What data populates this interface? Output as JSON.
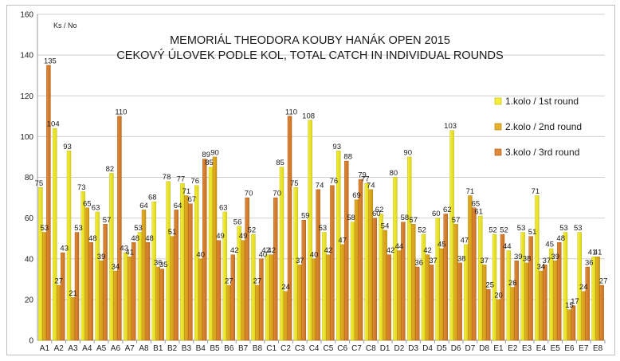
{
  "chart_data": {
    "type": "bar",
    "title": "MEMORIÁL THEODORA KOUBY HANÁK OPEN 2015",
    "subtitle": "CEKOVÝ ÚLOVEK PODLE KOL, TOTAL CATCH IN INDIVIDUAL ROUNDS",
    "ylabel": "Ks / No",
    "xlabel": "",
    "ylim": [
      0,
      160
    ],
    "yticks": [
      0,
      20,
      40,
      60,
      80,
      100,
      120,
      140,
      160
    ],
    "grid": true,
    "legend_position": "right",
    "categories": [
      "A1",
      "A2",
      "A3",
      "A4",
      "A5",
      "A6",
      "A7",
      "A8",
      "B1",
      "B2",
      "B3",
      "B4",
      "B5",
      "B6",
      "B7",
      "B8",
      "C1",
      "C2",
      "C3",
      "C4",
      "C5",
      "C6",
      "C7",
      "C8",
      "D1",
      "D2",
      "D3",
      "D4",
      "D5",
      "D6",
      "D7",
      "D8",
      "E1",
      "E2",
      "E3",
      "E4",
      "E5",
      "E6",
      "E7",
      "E8"
    ],
    "series": [
      {
        "name": "1.kolo / 1st round",
        "color": "#f5ef3a",
        "values": [
          75,
          104,
          93,
          73,
          63,
          82,
          43,
          53,
          68,
          78,
          77,
          76,
          85,
          63,
          56,
          52,
          42,
          85,
          75,
          108,
          53,
          93,
          58,
          77,
          62,
          80,
          90,
          52,
          60,
          103,
          47,
          61,
          52,
          44,
          53,
          71,
          45,
          53,
          53,
          41
        ]
      },
      {
        "name": "2.kolo / 2nd round",
        "color": "#e6b12c",
        "values": [
          53,
          27,
          21,
          65,
          39,
          34,
          41,
          64,
          36,
          51,
          71,
          40,
          90,
          27,
          49,
          27,
          42,
          24,
          37,
          40,
          42,
          47,
          69,
          74,
          54,
          44,
          57,
          42,
          45,
          57,
          71,
          37,
          20,
          26,
          38,
          34,
          39,
          15,
          24,
          41
        ]
      },
      {
        "name": "3.kolo / 3rd round",
        "color": "#e08a3c",
        "values": [
          135,
          43,
          53,
          48,
          57,
          110,
          48,
          48,
          35,
          64,
          67,
          89,
          49,
          42,
          70,
          40,
          70,
          110,
          59,
          74,
          76,
          88,
          79,
          60,
          42,
          58,
          36,
          37,
          62,
          38,
          65,
          25,
          52,
          39,
          51,
          37,
          48,
          17,
          36,
          27
        ]
      }
    ]
  }
}
